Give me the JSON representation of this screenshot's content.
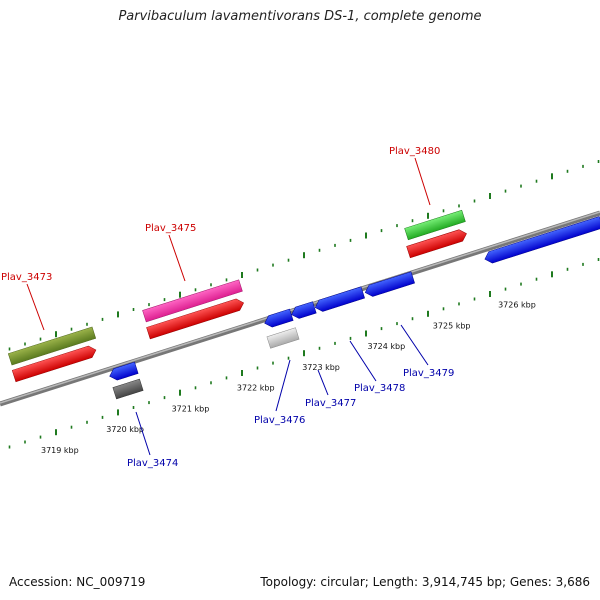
{
  "title": "Parvibaculum lavamentivorans DS-1, complete genome",
  "footer": {
    "accession": "Accession: NC_009719",
    "stats": "Topology: circular; Length: 3,914,745 bp; Genes: 3,686"
  },
  "colors": {
    "backbone": "#888888",
    "tick": "#1f7a1f",
    "red_label": "#cc0000",
    "blue_label": "#0000aa"
  },
  "scale": {
    "labels": [
      "3719 kbp",
      "3720 kbp",
      "3721 kbp",
      "3722 kbp",
      "3723 kbp",
      "3724 kbp",
      "3725 kbp",
      "3726 kbp"
    ]
  },
  "genes": [
    {
      "name": "Plav_3473",
      "strand": "+"
    },
    {
      "name": "Plav_3474",
      "strand": "-"
    },
    {
      "name": "Plav_3475",
      "strand": "+"
    },
    {
      "name": "Plav_3476",
      "strand": "-"
    },
    {
      "name": "Plav_3477",
      "strand": "-"
    },
    {
      "name": "Plav_3478",
      "strand": "-"
    },
    {
      "name": "Plav_3479",
      "strand": "-"
    },
    {
      "name": "Plav_3480",
      "strand": "+"
    }
  ]
}
